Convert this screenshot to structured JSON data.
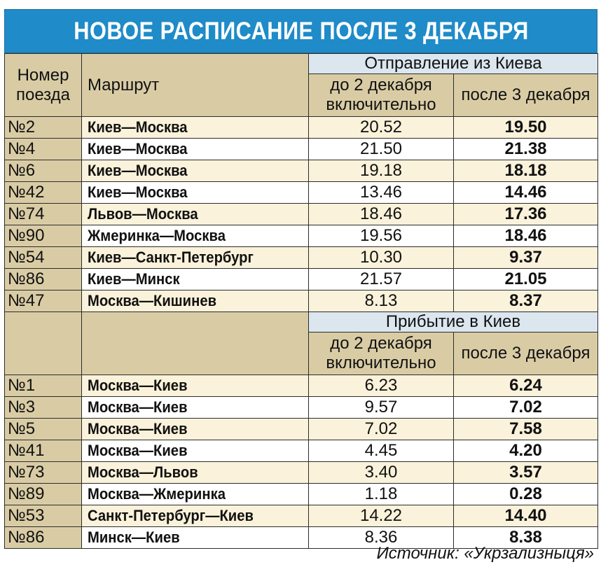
{
  "title": "НОВОЕ РАСПИСАНИЕ ПОСЛЕ 3 ДЕКАБРЯ",
  "header": {
    "train_no": "Номер поезда",
    "route": "Маршрут",
    "departure_group": "Отправление из Киева",
    "arrival_group": "Прибытие в Киев",
    "before": "до 2 декабря включительно",
    "after": "после 3 декабря"
  },
  "departures": [
    {
      "no": "№2",
      "route": "Киев—Москва",
      "old": "20.52",
      "new": "19.50"
    },
    {
      "no": "№4",
      "route": "Киев—Москва",
      "old": "21.50",
      "new": "21.38"
    },
    {
      "no": "№6",
      "route": "Киев—Москва",
      "old": "19.18",
      "new": "18.18"
    },
    {
      "no": "№42",
      "route": "Киев—Москва",
      "old": "13.46",
      "new": "14.46"
    },
    {
      "no": "№74",
      "route": "Львов—Москва",
      "old": "18.46",
      "new": "17.36"
    },
    {
      "no": "№90",
      "route": "Жмеринка—Москва",
      "old": "19.56",
      "new": "18.46"
    },
    {
      "no": "№54",
      "route": "Киев—Санкт-Петербург",
      "old": "10.30",
      "new": "9.37"
    },
    {
      "no": "№86",
      "route": "Киев—Минск",
      "old": "21.57",
      "new": "21.05"
    },
    {
      "no": "№47",
      "route": "Москва—Кишинев",
      "old": "8.13",
      "new": "8.37"
    }
  ],
  "arrivals": [
    {
      "no": "№1",
      "route": "Москва—Киев",
      "old": "6.23",
      "new": "6.24"
    },
    {
      "no": "№3",
      "route": "Москва—Киев",
      "old": "9.57",
      "new": "7.02"
    },
    {
      "no": "№5",
      "route": "Москва—Киев",
      "old": "7.02",
      "new": "7.58"
    },
    {
      "no": "№41",
      "route": "Москва—Киев",
      "old": "4.45",
      "new": "4.20"
    },
    {
      "no": "№73",
      "route": "Москва—Львов",
      "old": "3.40",
      "new": "3.57"
    },
    {
      "no": "№89",
      "route": "Москва—Жмеринка",
      "old": "1.18",
      "new": "0.28"
    },
    {
      "no": "№53",
      "route": "Санкт-Петербург—Киев",
      "old": "14.22",
      "new": "14.40"
    },
    {
      "no": "№86",
      "route": "Минск—Киев",
      "old": "8.36",
      "new": "8.38"
    }
  ],
  "source": "Источник: «Укрзализныця»",
  "colors": {
    "title_bg": "#1f8bc8",
    "header_bg": "#d9cca5",
    "row_alt": "#faf2da",
    "group_bg": "#dbe6ef"
  }
}
